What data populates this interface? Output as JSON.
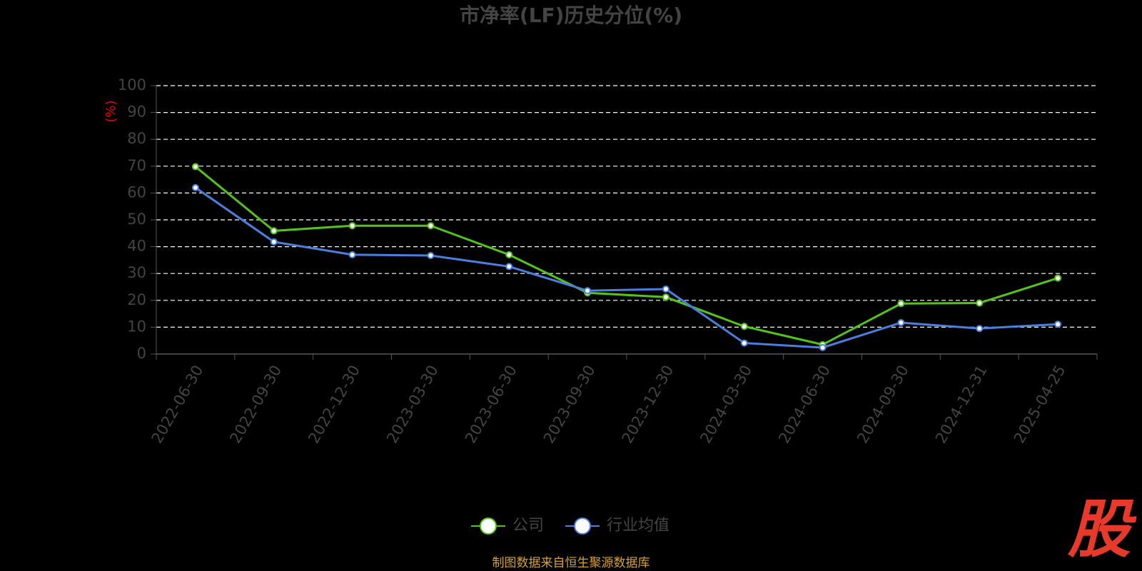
{
  "chart_data": {
    "type": "line",
    "title": "市净率(LF)历史分位(%)",
    "y_label": "(%)",
    "categories": [
      "2022-06-30",
      "2022-09-30",
      "2022-12-30",
      "2023-03-30",
      "2023-06-30",
      "2023-09-30",
      "2023-12-30",
      "2024-03-30",
      "2024-06-30",
      "2024-09-30",
      "2024-12-31",
      "2025-04-25"
    ],
    "series": [
      {
        "name": "公司",
        "color": "#52c41a",
        "values": [
          69.8,
          45.9,
          47.8,
          47.8,
          37.0,
          22.8,
          21.2,
          10.3,
          3.5,
          18.8,
          19.0,
          28.3
        ]
      },
      {
        "name": "行业均值",
        "color": "#4a7fe0",
        "values": [
          62.0,
          41.8,
          37.0,
          36.7,
          32.6,
          23.6,
          24.2,
          4.1,
          2.4,
          11.7,
          9.5,
          11.1
        ]
      }
    ],
    "ylim": [
      0,
      100
    ],
    "yticks": [
      0,
      10,
      20,
      30,
      40,
      50,
      60,
      70,
      80,
      90,
      100
    ],
    "grid": true,
    "legend": "bottom",
    "source": "制图数据来自恒生聚源数据库",
    "watermark": "股"
  }
}
